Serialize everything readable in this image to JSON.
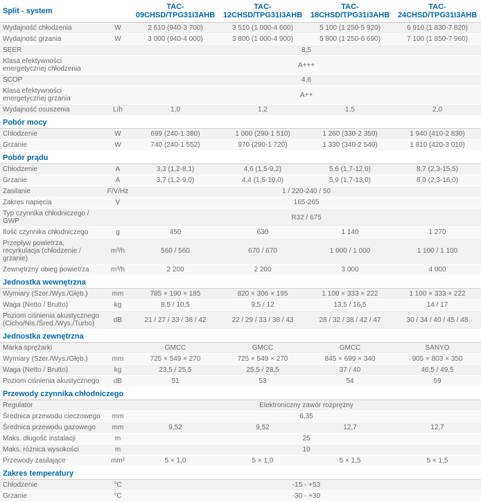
{
  "colors": {
    "header": "#0066a8",
    "text": "#6b6b6b",
    "rowOdd": "#f1f1f1",
    "rowEven": "#f8f8f8",
    "border": "#cfcfcf"
  },
  "header": {
    "title": "Split - system",
    "models": [
      "TAC-09CHSD/TPG31I3AHB",
      "TAC-12CHSD/TPG31I3AHB",
      "TAC-18CHSD/TPG31I3AHB",
      "TAC-24CHSD/TPG31I3AHB"
    ]
  },
  "sections": [
    {
      "type": "rows",
      "rows": [
        {
          "label": "Wydajność chłodzenia",
          "unit": "W",
          "vals": [
            "2 610 (940-3 700)",
            "3 510 (1 000-4 600)",
            "5 100 (1 250-5 920)",
            "6 910 (1 830-7 820)"
          ]
        },
        {
          "label": "Wydajność grzania",
          "unit": "W",
          "vals": [
            "3 000 (940-4 000)",
            "3 800 (1 000-4 900)",
            "5 800 (1 250-6 690)",
            "7 100 (1 850-7 960)"
          ]
        },
        {
          "label": "SEER",
          "unit": "",
          "span": "8,5"
        },
        {
          "label": "Klasa efektywności energetycznej chłodzenia",
          "unit": "",
          "span": "A+++"
        },
        {
          "label": "SCOP",
          "unit": "",
          "span": "4,6"
        },
        {
          "label": "Klasa efektywności energetycznej grzania",
          "unit": "",
          "span": "A++"
        },
        {
          "label": "Wydajność osuszenia",
          "unit": "L/h",
          "vals": [
            "1,0",
            "1,2",
            "1,5",
            "2,0"
          ]
        }
      ]
    },
    {
      "type": "section",
      "title": "Pobór mocy",
      "rows": [
        {
          "label": "Chłodzenie",
          "unit": "W",
          "vals": [
            "699 (240-1 380)",
            "1 000 (290-1 510)",
            "1 260 (330-2 350)",
            "1 940 (410-2 830)"
          ]
        },
        {
          "label": "Grzanie",
          "unit": "W",
          "vals": [
            "740 (240-1 552)",
            "970 (290-1 720)",
            "1 330 (340-2 540)",
            "1 810 (420-3 010)"
          ]
        }
      ]
    },
    {
      "type": "section",
      "title": "Pobór prądu",
      "rows": [
        {
          "label": "Chłodzenie",
          "unit": "A",
          "vals": [
            "3,3 (1,2-8,1)",
            "4,6 (1,5-9,2)",
            "5,6 (1,7-12,0)",
            "8,7 (2,3-15,5)"
          ]
        },
        {
          "label": "Grzanie",
          "unit": "A",
          "vals": [
            "3,7 (1,2-9,0)",
            "4,4 (1,5-10,0)",
            "5,9 (1,7-13,0)",
            "8,0 (2,3-16,0)"
          ]
        },
        {
          "label": "Zasilanie",
          "unit": "F/V/Hz",
          "span": "1 /  220-240 /  50"
        },
        {
          "label": "Zakres napięcia",
          "unit": "V",
          "span": "165-265"
        },
        {
          "label": "Typ czynnika chłodniczego / GWP",
          "unit": "",
          "span": "R32 / 675"
        },
        {
          "label": "Ilość  czynnika chłodniczego",
          "unit": "g",
          "vals": [
            "450",
            "630",
            "1 140",
            "1 270"
          ]
        },
        {
          "label": "Przepływ powietrza, recyrkulacja (chłodzenie / grzanie)",
          "unit": "m³/h",
          "vals": [
            "560 / 560",
            "670 / 670",
            "1 000 / 1 000",
            "1 100 / 1 100"
          ]
        },
        {
          "label": "Zewnętrzny obieg powietrza",
          "unit": "m³/h",
          "vals": [
            "2 200",
            "2 200",
            "3 000",
            "4 000"
          ]
        }
      ]
    },
    {
      "type": "section",
      "title": "Jednostka wewnętrzna",
      "rows": [
        {
          "label": "Wymiary (Szer./Wys./Głęb.)",
          "unit": "mm",
          "vals": [
            "785 × 190 × 185",
            "820 × 306 × 195",
            "1 100 × 333 × 222",
            "1 100 × 333 × 222"
          ]
        },
        {
          "label": "Waga (Netto / Brutto)",
          "unit": "kg",
          "vals": [
            "8,5 / 10,5",
            "9,5 / 12",
            "13,5 / 16,5",
            "14 / 17"
          ]
        },
        {
          "label": "Poziom ciśnienia akustycznego (Cicho/Nis./Śred./Wys./Turbo)",
          "unit": "dB",
          "vals": [
            "21 / 27 / 33 / 38 / 42",
            "22 / 29 / 33 / 38 / 43",
            "28 / 32 / 38 / 42 / 47",
            "30 / 34 / 40 / 45 / 48"
          ]
        }
      ]
    },
    {
      "type": "section",
      "title": "Jednostka zewnętrzna",
      "rows": [
        {
          "label": "Marka sprężarki",
          "unit": "",
          "vals": [
            "GMCC",
            "GMCC",
            "GMCC",
            "SANYO"
          ]
        },
        {
          "label": "Wymiary (Szer./Wys./Głęb.)",
          "unit": "mm",
          "vals": [
            "725 × 549 × 270",
            "725 × 549 × 270",
            "845 × 699 × 340",
            "905 × 803 × 350"
          ]
        },
        {
          "label": "Waga (Netto / Brutto)",
          "unit": "kg",
          "vals": [
            "23,5 / 25,5",
            "25,5 / 28,5",
            "37 / 40",
            "46,5 / 49,5"
          ]
        },
        {
          "label": "Poziom ciśnienia akustycznego",
          "unit": "dB",
          "vals": [
            "51",
            "53",
            "54",
            "59"
          ]
        }
      ]
    },
    {
      "type": "section",
      "title": "Przewody czynnika chłodniczego",
      "rows": [
        {
          "label": "Regulator",
          "unit": "",
          "span": "Elektroniczny zawór rozprężny"
        },
        {
          "label": "Średnica przewodu cieczowego",
          "unit": "mm",
          "span": "6,35"
        },
        {
          "label": "Średnica przewodu gazowego",
          "unit": "mm",
          "vals": [
            "9,52",
            "9,52",
            "12,7",
            "12,7"
          ]
        },
        {
          "label": "Maks. długość instalacji",
          "unit": "m",
          "span": "25"
        },
        {
          "label": "Maks. różnica wysokości",
          "unit": "m",
          "span": "10"
        },
        {
          "label": "Przewody zasilające",
          "unit": "mm²",
          "vals": [
            "5 × 1,0",
            "5 × 1,0",
            "5 × 1,5",
            "5 × 1,5"
          ]
        }
      ]
    },
    {
      "type": "section",
      "title": "Zakres temperatury",
      "rows": [
        {
          "label": "Chłodzenie",
          "unit": "°C",
          "span": "-15 - +53"
        },
        {
          "label": "Grzanie",
          "unit": "°C",
          "span": "-30 - +30"
        }
      ]
    }
  ]
}
